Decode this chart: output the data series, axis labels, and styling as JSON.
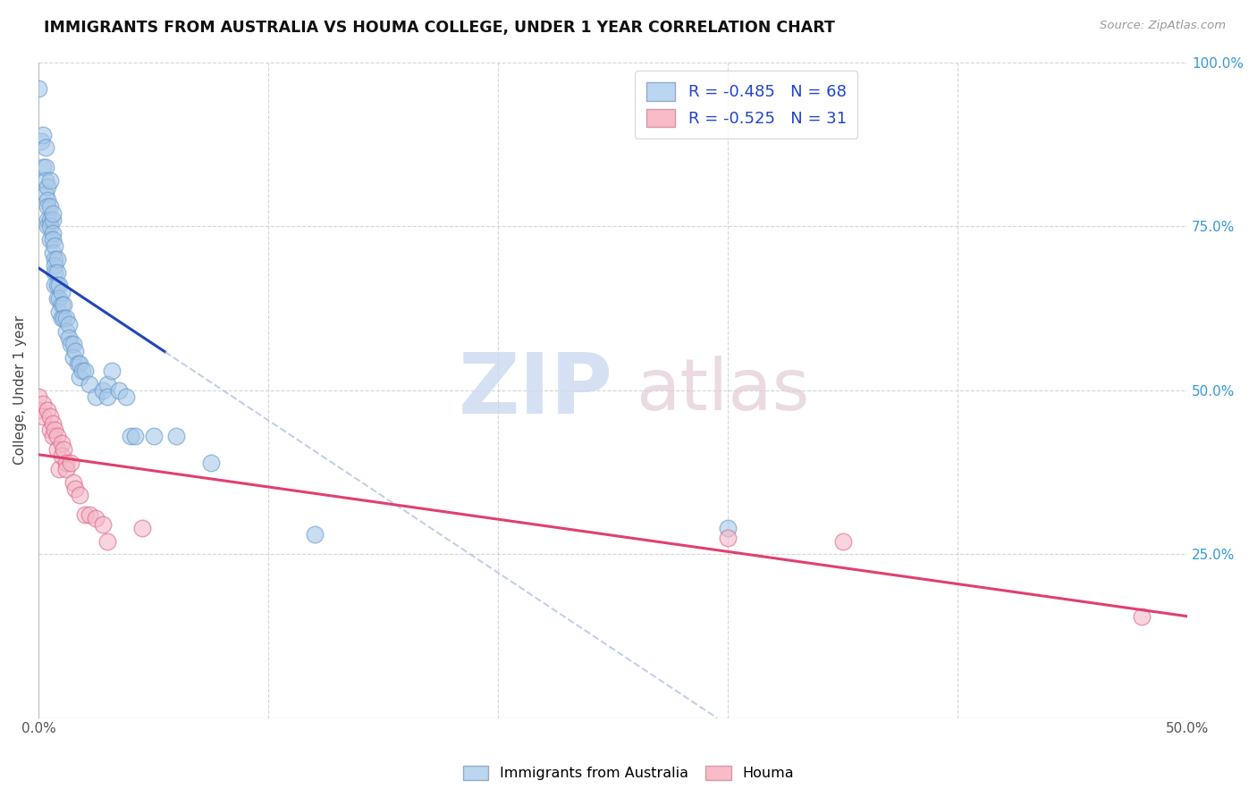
{
  "title": "IMMIGRANTS FROM AUSTRALIA VS HOUMA COLLEGE, UNDER 1 YEAR CORRELATION CHART",
  "source": "Source: ZipAtlas.com",
  "ylabel": "College, Under 1 year",
  "xlim": [
    0.0,
    0.5
  ],
  "ylim": [
    0.0,
    1.0
  ],
  "legend_r1": "R = -0.485",
  "legend_n1": "N = 68",
  "legend_r2": "R = -0.525",
  "legend_n2": "N = 31",
  "blue_color": "#a8c8e8",
  "pink_color": "#f4b8c8",
  "trend_blue": "#2244bb",
  "trend_pink": "#e04070",
  "blue_scatter": [
    [
      0.0,
      0.96
    ],
    [
      0.001,
      0.88
    ],
    [
      0.002,
      0.89
    ],
    [
      0.002,
      0.84
    ],
    [
      0.003,
      0.87
    ],
    [
      0.003,
      0.84
    ],
    [
      0.003,
      0.82
    ],
    [
      0.003,
      0.8
    ],
    [
      0.004,
      0.81
    ],
    [
      0.004,
      0.79
    ],
    [
      0.004,
      0.78
    ],
    [
      0.004,
      0.76
    ],
    [
      0.004,
      0.75
    ],
    [
      0.005,
      0.78
    ],
    [
      0.005,
      0.76
    ],
    [
      0.005,
      0.75
    ],
    [
      0.005,
      0.73
    ],
    [
      0.005,
      0.82
    ],
    [
      0.006,
      0.76
    ],
    [
      0.006,
      0.74
    ],
    [
      0.006,
      0.73
    ],
    [
      0.006,
      0.71
    ],
    [
      0.006,
      0.77
    ],
    [
      0.007,
      0.72
    ],
    [
      0.007,
      0.7
    ],
    [
      0.007,
      0.69
    ],
    [
      0.007,
      0.68
    ],
    [
      0.007,
      0.66
    ],
    [
      0.008,
      0.7
    ],
    [
      0.008,
      0.68
    ],
    [
      0.008,
      0.66
    ],
    [
      0.008,
      0.64
    ],
    [
      0.009,
      0.66
    ],
    [
      0.009,
      0.64
    ],
    [
      0.009,
      0.62
    ],
    [
      0.01,
      0.65
    ],
    [
      0.01,
      0.63
    ],
    [
      0.01,
      0.61
    ],
    [
      0.011,
      0.63
    ],
    [
      0.011,
      0.61
    ],
    [
      0.012,
      0.61
    ],
    [
      0.012,
      0.59
    ],
    [
      0.013,
      0.6
    ],
    [
      0.013,
      0.58
    ],
    [
      0.014,
      0.57
    ],
    [
      0.015,
      0.57
    ],
    [
      0.015,
      0.55
    ],
    [
      0.016,
      0.56
    ],
    [
      0.017,
      0.54
    ],
    [
      0.018,
      0.54
    ],
    [
      0.018,
      0.52
    ],
    [
      0.019,
      0.53
    ],
    [
      0.02,
      0.53
    ],
    [
      0.022,
      0.51
    ],
    [
      0.025,
      0.49
    ],
    [
      0.028,
      0.5
    ],
    [
      0.03,
      0.51
    ],
    [
      0.03,
      0.49
    ],
    [
      0.032,
      0.53
    ],
    [
      0.035,
      0.5
    ],
    [
      0.038,
      0.49
    ],
    [
      0.04,
      0.43
    ],
    [
      0.042,
      0.43
    ],
    [
      0.05,
      0.43
    ],
    [
      0.06,
      0.43
    ],
    [
      0.075,
      0.39
    ],
    [
      0.12,
      0.28
    ],
    [
      0.3,
      0.29
    ]
  ],
  "pink_scatter": [
    [
      0.0,
      0.49
    ],
    [
      0.0,
      0.47
    ],
    [
      0.002,
      0.48
    ],
    [
      0.002,
      0.46
    ],
    [
      0.004,
      0.47
    ],
    [
      0.005,
      0.46
    ],
    [
      0.005,
      0.44
    ],
    [
      0.006,
      0.45
    ],
    [
      0.006,
      0.43
    ],
    [
      0.007,
      0.44
    ],
    [
      0.008,
      0.43
    ],
    [
      0.008,
      0.41
    ],
    [
      0.009,
      0.38
    ],
    [
      0.01,
      0.42
    ],
    [
      0.01,
      0.4
    ],
    [
      0.011,
      0.41
    ],
    [
      0.012,
      0.39
    ],
    [
      0.012,
      0.38
    ],
    [
      0.014,
      0.39
    ],
    [
      0.015,
      0.36
    ],
    [
      0.016,
      0.35
    ],
    [
      0.018,
      0.34
    ],
    [
      0.02,
      0.31
    ],
    [
      0.022,
      0.31
    ],
    [
      0.025,
      0.305
    ],
    [
      0.028,
      0.295
    ],
    [
      0.03,
      0.27
    ],
    [
      0.045,
      0.29
    ],
    [
      0.3,
      0.275
    ],
    [
      0.35,
      0.27
    ],
    [
      0.48,
      0.155
    ]
  ]
}
